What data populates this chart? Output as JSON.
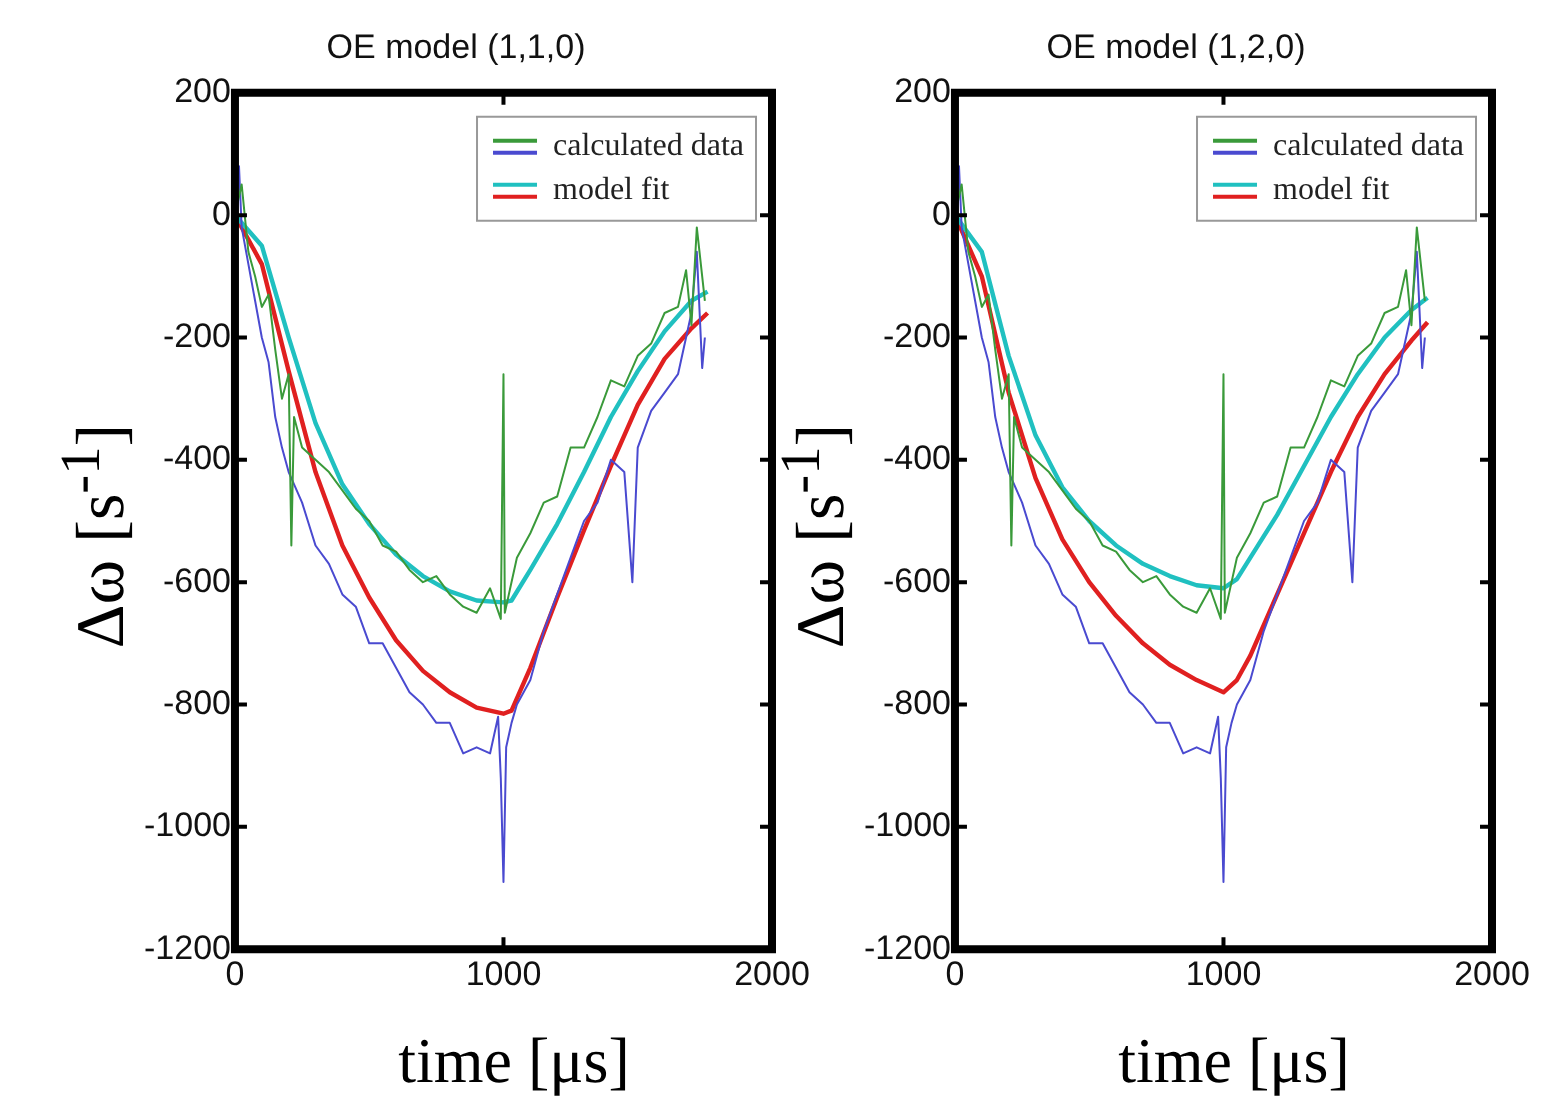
{
  "chart_data": [
    {
      "type": "line",
      "title": "OE model (1,1,0)",
      "xlabel": "time [μs]",
      "ylabel": "Δω  [s$^{-1}$]",
      "xlim": [
        0,
        2000
      ],
      "xticks": [
        0,
        1000,
        2000
      ],
      "ylim": [
        -1200,
        200
      ],
      "yticks": [
        -1200,
        -1000,
        -800,
        -600,
        -400,
        -200,
        0,
        200
      ],
      "grid": false,
      "legend": "top right",
      "marker": "none",
      "line_style": "solid",
      "series": [
        {
          "name": "calculated data",
          "color": "#3a9a3a",
          "x": [
            0,
            25,
            50,
            75,
            100,
            125,
            150,
            175,
            200,
            210,
            220,
            250,
            300,
            350,
            400,
            450,
            500,
            550,
            600,
            650,
            700,
            750,
            800,
            850,
            900,
            950,
            990,
            1000,
            1005,
            1020,
            1050,
            1100,
            1150,
            1200,
            1250,
            1300,
            1350,
            1400,
            1450,
            1500,
            1550,
            1600,
            1650,
            1680,
            1700,
            1720,
            1740,
            1750
          ],
          "values": [
            0,
            50,
            -60,
            -100,
            -150,
            -130,
            -220,
            -300,
            -260,
            -540,
            -330,
            -380,
            -400,
            -420,
            -450,
            -480,
            -500,
            -540,
            -550,
            -580,
            -600,
            -590,
            -620,
            -640,
            -650,
            -610,
            -660,
            -260,
            -650,
            -620,
            -560,
            -520,
            -470,
            -460,
            -380,
            -380,
            -330,
            -270,
            -280,
            -230,
            -210,
            -160,
            -150,
            -90,
            -180,
            -20,
            -100,
            -140
          ]
        },
        {
          "color": "#4a4ad0",
          "x": [
            0,
            15,
            25,
            50,
            75,
            100,
            125,
            150,
            175,
            200,
            250,
            300,
            350,
            400,
            450,
            500,
            550,
            600,
            650,
            700,
            750,
            800,
            850,
            900,
            950,
            980,
            990,
            1000,
            1010,
            1030,
            1050,
            1100,
            1150,
            1200,
            1250,
            1300,
            1350,
            1400,
            1450,
            1480,
            1500,
            1550,
            1600,
            1650,
            1700,
            1720,
            1740,
            1750
          ],
          "values": [
            50,
            80,
            -20,
            -80,
            -140,
            -200,
            -240,
            -330,
            -380,
            -420,
            -470,
            -540,
            -570,
            -620,
            -640,
            -700,
            -700,
            -740,
            -780,
            -800,
            -830,
            -830,
            -880,
            -870,
            -880,
            -820,
            -920,
            -1090,
            -870,
            -830,
            -800,
            -760,
            -680,
            -620,
            -560,
            -500,
            -470,
            -400,
            -420,
            -600,
            -380,
            -320,
            -290,
            -260,
            -160,
            -60,
            -250,
            -200
          ]
        },
        {
          "name": "model fit",
          "color": "#20c0c0",
          "x": [
            0,
            100,
            200,
            300,
            400,
            500,
            600,
            700,
            800,
            900,
            1000,
            1030,
            1100,
            1200,
            1300,
            1400,
            1500,
            1600,
            1700,
            1760
          ],
          "values": [
            0,
            -50,
            -200,
            -340,
            -440,
            -505,
            -555,
            -590,
            -615,
            -630,
            -633,
            -630,
            -580,
            -505,
            -420,
            -330,
            -255,
            -190,
            -140,
            -125
          ]
        },
        {
          "color": "#e02020",
          "x": [
            0,
            100,
            200,
            300,
            400,
            500,
            600,
            700,
            800,
            900,
            1000,
            1030,
            1100,
            1200,
            1300,
            1400,
            1500,
            1600,
            1700,
            1760
          ],
          "values": [
            0,
            -80,
            -255,
            -420,
            -540,
            -625,
            -695,
            -745,
            -780,
            -805,
            -815,
            -810,
            -740,
            -625,
            -515,
            -410,
            -310,
            -235,
            -185,
            -160
          ]
        }
      ]
    },
    {
      "type": "line",
      "title": "OE model (1,2,0)",
      "xlabel": "time [μs]",
      "ylabel": "Δω  [s$^{-1}$]",
      "xlim": [
        0,
        2000
      ],
      "xticks": [
        0,
        1000,
        2000
      ],
      "ylim": [
        -1200,
        200
      ],
      "yticks": [
        -1200,
        -1000,
        -800,
        -600,
        -400,
        -200,
        0,
        200
      ],
      "grid": false,
      "legend": "top right",
      "marker": "none",
      "line_style": "solid",
      "series": [
        {
          "name": "calculated data",
          "color": "#3a9a3a",
          "x": [
            0,
            25,
            50,
            75,
            100,
            125,
            150,
            175,
            200,
            210,
            220,
            250,
            300,
            350,
            400,
            450,
            500,
            550,
            600,
            650,
            700,
            750,
            800,
            850,
            900,
            950,
            990,
            1000,
            1005,
            1020,
            1050,
            1100,
            1150,
            1200,
            1250,
            1300,
            1350,
            1400,
            1450,
            1500,
            1550,
            1600,
            1650,
            1680,
            1700,
            1720,
            1740,
            1750
          ],
          "values": [
            0,
            50,
            -60,
            -100,
            -150,
            -130,
            -220,
            -300,
            -260,
            -540,
            -330,
            -380,
            -400,
            -420,
            -450,
            -480,
            -500,
            -540,
            -550,
            -580,
            -600,
            -590,
            -620,
            -640,
            -650,
            -610,
            -660,
            -260,
            -650,
            -620,
            -560,
            -520,
            -470,
            -460,
            -380,
            -380,
            -330,
            -270,
            -280,
            -230,
            -210,
            -160,
            -150,
            -90,
            -180,
            -20,
            -100,
            -140
          ]
        },
        {
          "color": "#4a4ad0",
          "x": [
            0,
            15,
            25,
            50,
            75,
            100,
            125,
            150,
            175,
            200,
            250,
            300,
            350,
            400,
            450,
            500,
            550,
            600,
            650,
            700,
            750,
            800,
            850,
            900,
            950,
            980,
            990,
            1000,
            1010,
            1030,
            1050,
            1100,
            1150,
            1200,
            1250,
            1300,
            1350,
            1400,
            1450,
            1480,
            1500,
            1550,
            1600,
            1650,
            1700,
            1720,
            1740,
            1750
          ],
          "values": [
            50,
            80,
            -20,
            -80,
            -140,
            -200,
            -240,
            -330,
            -380,
            -420,
            -470,
            -540,
            -570,
            -620,
            -640,
            -700,
            -700,
            -740,
            -780,
            -800,
            -830,
            -830,
            -880,
            -870,
            -880,
            -820,
            -920,
            -1090,
            -870,
            -830,
            -800,
            -760,
            -680,
            -620,
            -560,
            -500,
            -470,
            -400,
            -420,
            -600,
            -380,
            -320,
            -290,
            -260,
            -160,
            -60,
            -250,
            -200
          ]
        },
        {
          "name": "model fit",
          "color": "#20c0c0",
          "x": [
            0,
            100,
            200,
            300,
            400,
            500,
            600,
            700,
            800,
            900,
            1000,
            1050,
            1100,
            1200,
            1300,
            1400,
            1500,
            1600,
            1700,
            1760
          ],
          "values": [
            0,
            -60,
            -230,
            -360,
            -445,
            -500,
            -540,
            -570,
            -590,
            -605,
            -610,
            -595,
            -560,
            -490,
            -410,
            -330,
            -260,
            -200,
            -155,
            -135
          ]
        },
        {
          "color": "#e02020",
          "x": [
            0,
            100,
            200,
            300,
            400,
            500,
            600,
            700,
            800,
            900,
            1000,
            1050,
            1100,
            1200,
            1300,
            1400,
            1500,
            1600,
            1700,
            1760
          ],
          "values": [
            0,
            -100,
            -290,
            -430,
            -530,
            -600,
            -655,
            -700,
            -735,
            -760,
            -780,
            -760,
            -720,
            -620,
            -520,
            -420,
            -330,
            -260,
            -205,
            -175
          ]
        }
      ]
    }
  ]
}
